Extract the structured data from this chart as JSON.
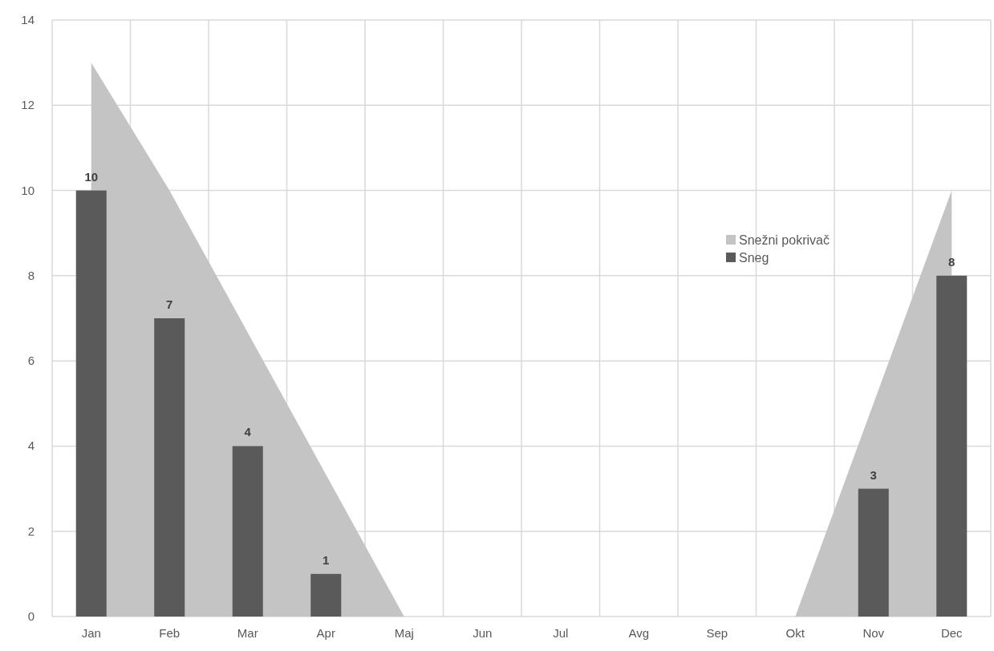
{
  "chart_data": {
    "type": "bar",
    "categories": [
      "Jan",
      "Feb",
      "Mar",
      "Apr",
      "Maj",
      "Jun",
      "Jul",
      "Avg",
      "Sep",
      "Okt",
      "Nov",
      "Dec"
    ],
    "series": [
      {
        "name": "Snežni pokrivač",
        "type": "area",
        "color": "#c4c4c4",
        "values": [
          13,
          10,
          null,
          null,
          0,
          0,
          0,
          0,
          0,
          0,
          null,
          10
        ]
      },
      {
        "name": "Sneg",
        "color": "#5a5a5a",
        "values": [
          10,
          7,
          4,
          1,
          null,
          null,
          null,
          null,
          null,
          null,
          3,
          8
        ],
        "value_labels": [
          "10",
          "7",
          "4",
          "1",
          null,
          null,
          null,
          null,
          null,
          null,
          "3",
          "8"
        ]
      }
    ],
    "ylim": [
      0,
      14
    ],
    "yticks": [
      0,
      2,
      4,
      6,
      8,
      10,
      12,
      14
    ],
    "grid": true,
    "legend": "right"
  }
}
